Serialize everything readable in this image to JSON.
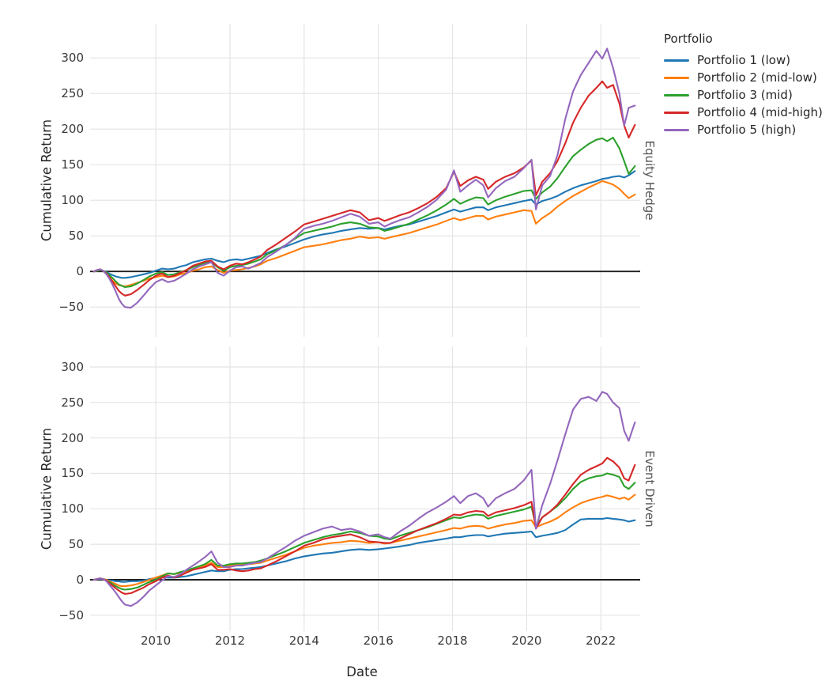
{
  "legend": {
    "title": "Portfolio",
    "items": [
      {
        "label": "Portfolio 1 (low)",
        "color": "#1f77b4"
      },
      {
        "label": "Portfolio 2 (mid-low)",
        "color": "#ff7f0e"
      },
      {
        "label": "Portfolio 3 (mid)",
        "color": "#2ca02c"
      },
      {
        "label": "Portfolio 4 (mid-high)",
        "color": "#d62728"
      },
      {
        "label": "Portfolio 5 (high)",
        "color": "#9467bd"
      }
    ],
    "position": "upper right outside"
  },
  "style": {
    "grid_color": "#e4e4e4",
    "zero_line_color": "#1f1f1f",
    "background": "#ffffff",
    "grid": true
  },
  "chart_data": [
    {
      "type": "line",
      "facet_label": "Equity Hedge",
      "ylabel": "Cumulative Return",
      "xlabel": "Date",
      "xlim": [
        2008.23,
        2023.06
      ],
      "ylim": [
        -92,
        348
      ],
      "yticks": [
        300,
        250,
        200,
        150,
        100,
        50,
        0,
        -50
      ],
      "ytick_labels": [
        "300",
        "250",
        "200",
        "150",
        "100",
        "50",
        "0",
        "−50"
      ],
      "xticks": [
        2010,
        2012,
        2014,
        2016,
        2018,
        2020,
        2022
      ],
      "xtick_labels": [
        "2010",
        "2012",
        "2014",
        "2016",
        "2018",
        "2020",
        "2022"
      ],
      "zero_line": 0,
      "x": [
        2008.33,
        2008.42,
        2008.5,
        2008.58,
        2008.67,
        2008.75,
        2008.83,
        2008.92,
        2009.0,
        2009.08,
        2009.17,
        2009.33,
        2009.5,
        2009.67,
        2009.83,
        2010.0,
        2010.17,
        2010.33,
        2010.5,
        2010.67,
        2010.83,
        2011.0,
        2011.17,
        2011.33,
        2011.5,
        2011.67,
        2011.83,
        2012.0,
        2012.17,
        2012.33,
        2012.5,
        2012.67,
        2012.83,
        2013.0,
        2013.25,
        2013.5,
        2013.75,
        2014.0,
        2014.25,
        2014.5,
        2014.75,
        2015.0,
        2015.25,
        2015.5,
        2015.75,
        2016.0,
        2016.17,
        2016.33,
        2016.58,
        2016.83,
        2017.08,
        2017.33,
        2017.58,
        2017.83,
        2018.04,
        2018.21,
        2018.42,
        2018.63,
        2018.83,
        2018.96,
        2019.17,
        2019.42,
        2019.67,
        2019.92,
        2020.13,
        2020.25,
        2020.42,
        2020.63,
        2020.83,
        2021.04,
        2021.25,
        2021.46,
        2021.67,
        2021.88,
        2022.04,
        2022.17,
        2022.33,
        2022.5,
        2022.63,
        2022.75,
        2022.92
      ],
      "series": [
        {
          "name": "Portfolio 1 (low)",
          "color": "#1f77b4",
          "values": [
            0,
            1,
            2,
            1,
            -1,
            -3,
            -5,
            -7,
            -8,
            -9,
            -9,
            -8,
            -6,
            -4,
            -2,
            1,
            4,
            3,
            4,
            7,
            9,
            13,
            15,
            17,
            18,
            15,
            13,
            16,
            17,
            16,
            18,
            20,
            22,
            26,
            31,
            35,
            40,
            45,
            49,
            52,
            54,
            57,
            59,
            61,
            60,
            61,
            59,
            61,
            64,
            66,
            70,
            74,
            78,
            83,
            87,
            84,
            87,
            90,
            90,
            86,
            90,
            93,
            96,
            99,
            101,
            94,
            99,
            102,
            106,
            112,
            117,
            121,
            124,
            127,
            130,
            131,
            133,
            134,
            132,
            135,
            141
          ]
        },
        {
          "name": "Portfolio 2 (mid-low)",
          "color": "#ff7f0e",
          "values": [
            0,
            1,
            2,
            1,
            -3,
            -8,
            -13,
            -17,
            -19,
            -20,
            -21,
            -19,
            -16,
            -13,
            -10,
            -8,
            -6,
            -8,
            -7,
            -4,
            -2,
            1,
            3,
            6,
            7,
            2,
            -2,
            1,
            2,
            3,
            5,
            7,
            10,
            15,
            19,
            24,
            29,
            34,
            36,
            38,
            41,
            44,
            46,
            49,
            47,
            48,
            46,
            48,
            51,
            54,
            58,
            62,
            66,
            71,
            75,
            72,
            75,
            78,
            78,
            73,
            77,
            80,
            83,
            86,
            85,
            67,
            75,
            82,
            91,
            99,
            106,
            112,
            118,
            123,
            127,
            125,
            122,
            116,
            109,
            103,
            108
          ]
        },
        {
          "name": "Portfolio 3 (mid)",
          "color": "#2ca02c",
          "values": [
            0,
            1,
            2,
            1,
            -2,
            -5,
            -9,
            -14,
            -18,
            -20,
            -22,
            -21,
            -17,
            -12,
            -7,
            -3,
            -1,
            -5,
            -4,
            -1,
            2,
            6,
            9,
            12,
            13,
            6,
            1,
            6,
            8,
            9,
            11,
            14,
            17,
            24,
            30,
            37,
            46,
            54,
            57,
            60,
            63,
            67,
            69,
            67,
            62,
            61,
            57,
            59,
            63,
            67,
            73,
            79,
            86,
            94,
            102,
            95,
            100,
            104,
            103,
            94,
            100,
            105,
            109,
            113,
            114,
            102,
            111,
            119,
            131,
            147,
            162,
            171,
            179,
            185,
            187,
            183,
            188,
            173,
            155,
            137,
            148
          ]
        },
        {
          "name": "Portfolio 4 (mid-high)",
          "color": "#d62728",
          "values": [
            0,
            2,
            3,
            1,
            -3,
            -8,
            -14,
            -21,
            -27,
            -31,
            -34,
            -32,
            -26,
            -19,
            -12,
            -6,
            -3,
            -8,
            -6,
            -2,
            2,
            8,
            11,
            14,
            15,
            7,
            3,
            8,
            11,
            10,
            13,
            17,
            21,
            30,
            38,
            47,
            56,
            66,
            70,
            74,
            78,
            82,
            86,
            83,
            72,
            75,
            71,
            74,
            79,
            83,
            89,
            96,
            105,
            117,
            140,
            120,
            128,
            133,
            129,
            116,
            126,
            133,
            138,
            146,
            156,
            107,
            126,
            138,
            155,
            180,
            209,
            230,
            247,
            258,
            267,
            258,
            262,
            236,
            205,
            188,
            206
          ]
        },
        {
          "name": "Portfolio 5 (high)",
          "color": "#9467bd",
          "values": [
            0,
            2,
            3,
            1,
            -4,
            -10,
            -18,
            -28,
            -38,
            -45,
            -50,
            -51,
            -44,
            -34,
            -24,
            -15,
            -11,
            -15,
            -13,
            -8,
            -3,
            3,
            7,
            10,
            13,
            -2,
            -6,
            1,
            6,
            7,
            4,
            8,
            12,
            20,
            28,
            37,
            47,
            60,
            64,
            67,
            71,
            76,
            81,
            77,
            67,
            69,
            63,
            67,
            72,
            76,
            83,
            91,
            101,
            115,
            142,
            112,
            121,
            129,
            121,
            104,
            117,
            127,
            133,
            145,
            157,
            87,
            121,
            134,
            163,
            214,
            253,
            276,
            293,
            310,
            299,
            313,
            286,
            250,
            205,
            230,
            233
          ]
        }
      ]
    },
    {
      "type": "line",
      "facet_label": "Event Driven",
      "ylabel": "Cumulative Return",
      "xlabel": "Date",
      "xlim": [
        2008.23,
        2023.06
      ],
      "ylim": [
        -72.5,
        329
      ],
      "yticks": [
        300,
        250,
        200,
        150,
        100,
        50,
        0,
        -50
      ],
      "ytick_labels": [
        "300",
        "250",
        "200",
        "150",
        "100",
        "50",
        "0",
        "−50"
      ],
      "xticks": [
        2010,
        2012,
        2014,
        2016,
        2018,
        2020,
        2022
      ],
      "xtick_labels": [
        "2010",
        "2012",
        "2014",
        "2016",
        "2018",
        "2020",
        "2022"
      ],
      "zero_line": 0,
      "x": [
        2008.33,
        2008.42,
        2008.5,
        2008.58,
        2008.67,
        2008.75,
        2008.83,
        2008.92,
        2009.0,
        2009.08,
        2009.17,
        2009.33,
        2009.5,
        2009.67,
        2009.83,
        2010.0,
        2010.17,
        2010.33,
        2010.5,
        2010.67,
        2010.83,
        2011.0,
        2011.17,
        2011.33,
        2011.5,
        2011.67,
        2011.83,
        2012.0,
        2012.17,
        2012.33,
        2012.5,
        2012.67,
        2012.83,
        2013.0,
        2013.25,
        2013.5,
        2013.75,
        2014.0,
        2014.25,
        2014.5,
        2014.75,
        2015.0,
        2015.25,
        2015.5,
        2015.75,
        2016.0,
        2016.17,
        2016.33,
        2016.58,
        2016.83,
        2017.08,
        2017.33,
        2017.58,
        2017.83,
        2018.04,
        2018.21,
        2018.42,
        2018.63,
        2018.83,
        2018.96,
        2019.17,
        2019.42,
        2019.67,
        2019.92,
        2020.13,
        2020.25,
        2020.42,
        2020.63,
        2020.83,
        2021.04,
        2021.25,
        2021.46,
        2021.67,
        2021.88,
        2022.04,
        2022.17,
        2022.33,
        2022.5,
        2022.63,
        2022.75,
        2022.92
      ],
      "series": [
        {
          "name": "Portfolio 1 (low)",
          "color": "#1f77b4",
          "values": [
            0,
            1,
            1,
            1,
            0,
            -1,
            -1,
            -2,
            -2,
            -3,
            -3,
            -2,
            -2,
            -1,
            1,
            2,
            4,
            3,
            3,
            4,
            5,
            7,
            9,
            11,
            13,
            12,
            12,
            14,
            15,
            15,
            16,
            17,
            18,
            20,
            23,
            26,
            30,
            33,
            35,
            37,
            38,
            40,
            42,
            43,
            42,
            43,
            44,
            45,
            47,
            49,
            52,
            54,
            56,
            58,
            60,
            60,
            62,
            63,
            63,
            61,
            63,
            65,
            66,
            67,
            68,
            60,
            62,
            64,
            66,
            70,
            78,
            85,
            86,
            86,
            86,
            87,
            86,
            85,
            84,
            82,
            84
          ]
        },
        {
          "name": "Portfolio 2 (mid-low)",
          "color": "#ff7f0e",
          "values": [
            0,
            1,
            2,
            1,
            0,
            -2,
            -4,
            -6,
            -8,
            -9,
            -9,
            -8,
            -6,
            -3,
            0,
            3,
            6,
            9,
            8,
            10,
            12,
            15,
            17,
            20,
            24,
            18,
            18,
            20,
            21,
            21,
            22,
            23,
            24,
            27,
            31,
            35,
            40,
            45,
            48,
            50,
            52,
            53,
            55,
            54,
            52,
            53,
            51,
            52,
            55,
            58,
            61,
            64,
            67,
            70,
            73,
            72,
            75,
            76,
            75,
            72,
            75,
            78,
            80,
            83,
            84,
            74,
            78,
            82,
            87,
            95,
            102,
            108,
            112,
            115,
            117,
            119,
            117,
            114,
            116,
            113,
            120
          ]
        },
        {
          "name": "Portfolio 3 (mid)",
          "color": "#2ca02c",
          "values": [
            0,
            1,
            2,
            1,
            -1,
            -3,
            -6,
            -9,
            -11,
            -13,
            -14,
            -13,
            -11,
            -7,
            -3,
            0,
            5,
            9,
            8,
            11,
            13,
            16,
            19,
            22,
            28,
            20,
            20,
            22,
            23,
            23,
            24,
            25,
            27,
            30,
            35,
            40,
            46,
            52,
            56,
            60,
            63,
            65,
            68,
            66,
            62,
            61,
            58,
            57,
            62,
            66,
            70,
            74,
            79,
            84,
            88,
            87,
            90,
            92,
            91,
            86,
            90,
            93,
            96,
            99,
            103,
            76,
            88,
            96,
            104,
            115,
            128,
            138,
            143,
            146,
            147,
            150,
            148,
            145,
            132,
            128,
            137
          ]
        },
        {
          "name": "Portfolio 4 (mid-high)",
          "color": "#d62728",
          "values": [
            0,
            1,
            2,
            1,
            -1,
            -5,
            -8,
            -12,
            -15,
            -18,
            -20,
            -19,
            -15,
            -11,
            -6,
            -2,
            3,
            6,
            3,
            6,
            10,
            14,
            16,
            18,
            22,
            14,
            14,
            15,
            13,
            12,
            13,
            15,
            16,
            20,
            26,
            33,
            40,
            48,
            52,
            57,
            60,
            62,
            64,
            60,
            54,
            53,
            52,
            52,
            58,
            64,
            70,
            75,
            80,
            86,
            92,
            91,
            95,
            97,
            96,
            90,
            95,
            98,
            101,
            105,
            110,
            72,
            88,
            96,
            106,
            120,
            135,
            148,
            155,
            160,
            164,
            172,
            167,
            158,
            143,
            140,
            162
          ]
        },
        {
          "name": "Portfolio 5 (high)",
          "color": "#9467bd",
          "values": [
            0,
            1,
            2,
            1,
            -2,
            -7,
            -12,
            -18,
            -24,
            -30,
            -35,
            -37,
            -32,
            -24,
            -15,
            -8,
            -1,
            5,
            4,
            8,
            14,
            20,
            26,
            32,
            40,
            24,
            18,
            18,
            20,
            20,
            22,
            24,
            25,
            30,
            38,
            46,
            55,
            62,
            67,
            72,
            75,
            70,
            72,
            68,
            62,
            64,
            60,
            58,
            68,
            76,
            86,
            95,
            102,
            110,
            118,
            108,
            118,
            122,
            115,
            103,
            115,
            122,
            128,
            140,
            155,
            72,
            105,
            135,
            168,
            205,
            240,
            255,
            258,
            252,
            265,
            262,
            250,
            242,
            210,
            196,
            222
          ]
        }
      ]
    }
  ]
}
